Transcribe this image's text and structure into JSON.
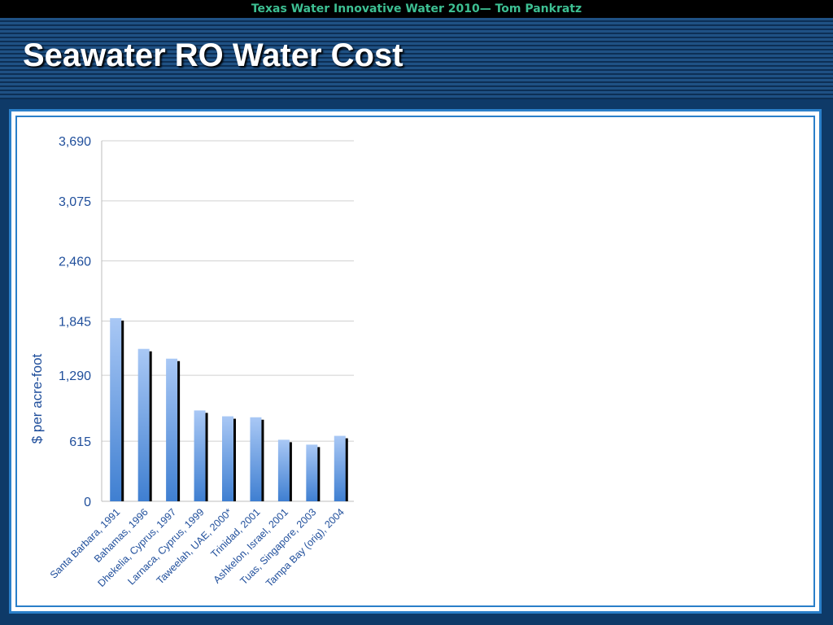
{
  "header": {
    "top_text": "Texas Water Innovative Water 2010— Tom Pankratz",
    "title": "Seawater RO Water Cost"
  },
  "colors": {
    "bar_top": "#a9c8f5",
    "bar_bottom": "#3f7fd1",
    "bar_shadow": "#000000",
    "axis_text": "#1f4e9b",
    "gridline": "#d0d0d0",
    "frame": "#2a7fc9"
  },
  "chart_data": {
    "type": "bar",
    "title": "",
    "xlabel": "",
    "ylabel": "$ per acre-foot",
    "ylim": [
      0,
      3690
    ],
    "yticks": [
      "0",
      "615",
      "1,290",
      "1,845",
      "2,460",
      "3,075",
      "3,690"
    ],
    "ytick_values": [
      0,
      615,
      1290,
      1845,
      2460,
      3075,
      3690
    ],
    "grid": true,
    "legend": "none",
    "categories": [
      "Santa Barbara, 1991",
      "Bahamas, 1996",
      "Dhekelia, Cyprus, 1997",
      "Larnaca, Cyprus, 1999",
      "Taweelah, UAE, 2000*",
      "Trinidad, 2001",
      "Ashkelon, Israel, 2001",
      "Tuas, Singapore, 2003",
      "Tampa Bay (orig), 2004"
    ],
    "values": [
      1875,
      1560,
      1460,
      930,
      870,
      860,
      630,
      580,
      670
    ]
  }
}
